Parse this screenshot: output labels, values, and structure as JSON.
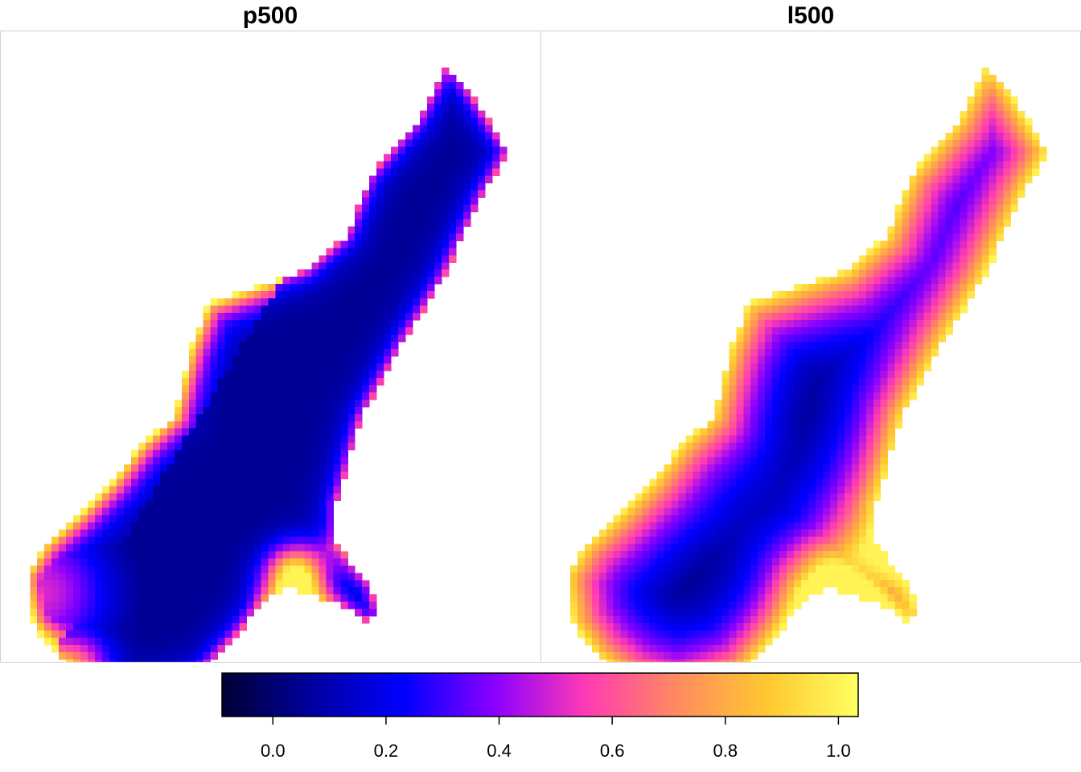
{
  "panels": [
    {
      "title": "p500",
      "variable": "p500"
    },
    {
      "title": "l500",
      "variable": "l500"
    }
  ],
  "legend": {
    "type": "continuous-colorbar",
    "palette": "plasma-like (black-blue-purple-pink-orange-yellow)",
    "range": [
      -0.09,
      1.035
    ],
    "ticks": [
      {
        "value": 0.0,
        "label": "0.0"
      },
      {
        "value": 0.2,
        "label": "0.2"
      },
      {
        "value": 0.4,
        "label": "0.4"
      },
      {
        "value": 0.6,
        "label": "0.6"
      },
      {
        "value": 0.8,
        "label": "0.8"
      },
      {
        "value": 1.0,
        "label": "1.0"
      }
    ],
    "colors": [
      "#000033",
      "#0000a0",
      "#0000ff",
      "#8a00ff",
      "#ff3ab4",
      "#ff8a60",
      "#ffc830",
      "#ffff60"
    ]
  },
  "colors": {
    "panel_border": "#cfcfcf",
    "background": "#ffffff"
  }
}
